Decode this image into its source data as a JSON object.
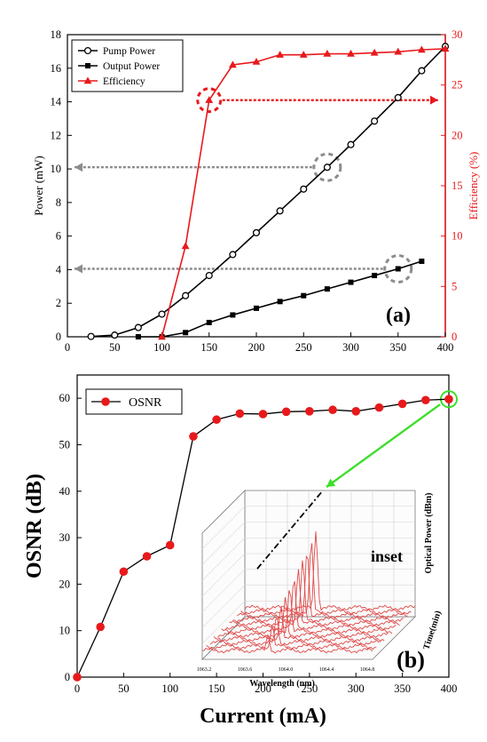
{
  "chart_data": [
    {
      "panel_label": "(a)",
      "type": "line",
      "xlim": [
        0,
        400
      ],
      "xticks": [
        0,
        50,
        100,
        150,
        200,
        250,
        300,
        350,
        400
      ],
      "ylabel": "Power (mW)",
      "ylim": [
        0,
        18
      ],
      "yticks": [
        0,
        2,
        4,
        6,
        8,
        10,
        12,
        14,
        16,
        18
      ],
      "y2label": "Efficiency (%)",
      "y2lim": [
        0,
        30
      ],
      "y2ticks": [
        0,
        5,
        10,
        15,
        20,
        25,
        30
      ],
      "legend_position": "top-left",
      "series": [
        {
          "name": "Pump Power",
          "axis": "left",
          "marker": "open-circle",
          "color": "#000000",
          "x": [
            25,
            50,
            75,
            100,
            125,
            150,
            175,
            200,
            225,
            250,
            275,
            300,
            325,
            350,
            375,
            400
          ],
          "y": [
            0.02,
            0.1,
            0.55,
            1.35,
            2.45,
            3.65,
            4.9,
            6.2,
            7.5,
            8.8,
            10.1,
            11.45,
            12.85,
            14.25,
            15.85,
            17.3
          ]
        },
        {
          "name": "Output Power",
          "axis": "left",
          "marker": "filled-square",
          "color": "#000000",
          "x": [
            75,
            100,
            125,
            150,
            175,
            200,
            225,
            250,
            275,
            300,
            325,
            350,
            375
          ],
          "y": [
            0,
            0,
            0.25,
            0.85,
            1.3,
            1.7,
            2.1,
            2.45,
            2.85,
            3.25,
            3.65,
            4.05,
            4.5
          ]
        },
        {
          "name": "Efficiency",
          "axis": "right",
          "marker": "filled-triangle",
          "color": "#e8191b",
          "x": [
            100,
            125,
            150,
            175,
            200,
            225,
            250,
            275,
            300,
            325,
            350,
            375,
            400
          ],
          "y": [
            0,
            9,
            23.5,
            27,
            27.3,
            28,
            28,
            28.1,
            28.1,
            28.2,
            28.3,
            28.5,
            28.6
          ]
        }
      ]
    },
    {
      "panel_label": "(b)",
      "type": "line",
      "xlabel": "Current (mA)",
      "xlim": [
        0,
        400
      ],
      "xticks": [
        0,
        50,
        100,
        150,
        200,
        250,
        300,
        350,
        400
      ],
      "ylabel": "OSNR (dB)",
      "ylim": [
        0,
        65
      ],
      "yticks": [
        0,
        10,
        20,
        30,
        40,
        50,
        60
      ],
      "legend_position": "top-left",
      "series": [
        {
          "name": "OSNR",
          "marker": "filled-circle",
          "color": "#e8191b",
          "x": [
            0,
            25,
            50,
            75,
            100,
            125,
            150,
            175,
            200,
            225,
            250,
            275,
            300,
            325,
            350,
            375,
            400
          ],
          "y": [
            0,
            10.8,
            22.7,
            26,
            28.4,
            51.8,
            55.4,
            56.7,
            56.6,
            57.1,
            57.2,
            57.5,
            57.2,
            58,
            58.8,
            59.6,
            59.8
          ]
        }
      ],
      "inset": {
        "label": "inset",
        "xlabel": "Wavelength (nm)",
        "xticks": [
          "1063.2",
          "1063.6",
          "1064.0",
          "1064.4",
          "1064.8"
        ],
        "ylabel": "Time(min)",
        "zlabel": "Optical Power (dBm)"
      }
    }
  ]
}
